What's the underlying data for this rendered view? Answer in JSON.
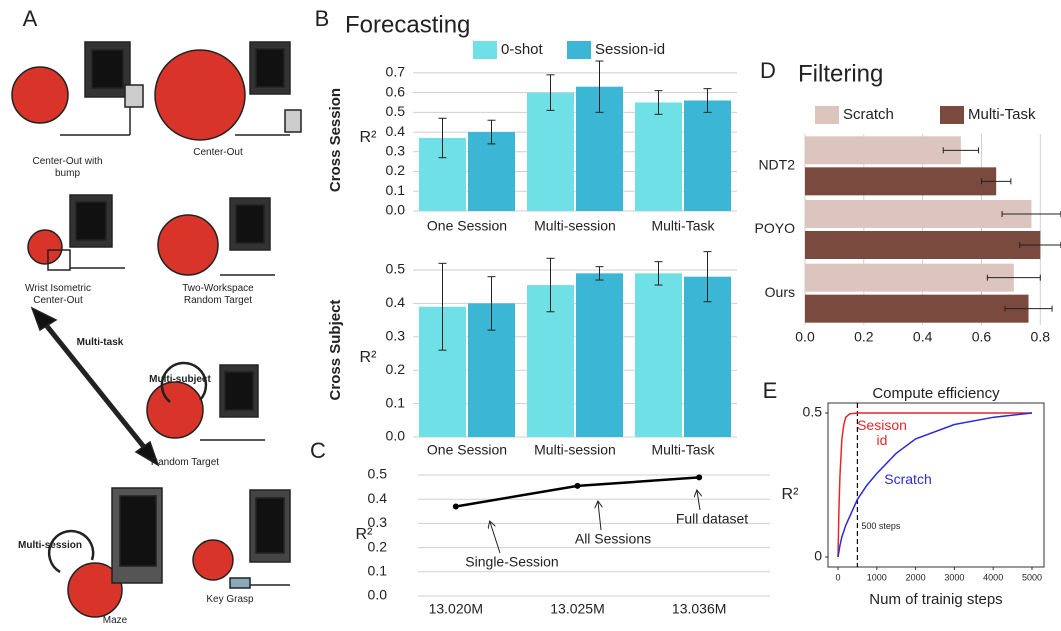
{
  "illustration": {
    "panel": "A",
    "captions": [
      "Center-Out with bump",
      "Center-Out",
      "Wrist Isometric Center-Out",
      "Two-Workspace Random Target",
      "Multi-task",
      "Multi-subject",
      "Random Target",
      "Multi-session",
      "Maze",
      "Key Grasp"
    ]
  },
  "chart_data": [
    {
      "type": "bar",
      "panel": "B",
      "title": "Forecasting",
      "ylabel": "Cross Session",
      "y_symbol": "R²",
      "categories": [
        "One Session",
        "Multi-session",
        "Multi-Task"
      ],
      "series": [
        {
          "name": "0-shot",
          "color": "#6fe1e6",
          "values": [
            0.37,
            0.6,
            0.55
          ],
          "errors": [
            0.1,
            0.09,
            0.06
          ]
        },
        {
          "name": "Session-id",
          "color": "#3bb6d5",
          "values": [
            0.4,
            0.63,
            0.56
          ],
          "errors": [
            0.06,
            0.13,
            0.06
          ]
        }
      ],
      "ylim": [
        0,
        0.75
      ],
      "yticks": [
        {
          "value": 0,
          "label": "0.0"
        },
        0.1,
        0.2,
        0.3,
        0.4,
        0.5,
        0.6,
        0.7
      ],
      "grid": true
    },
    {
      "type": "bar",
      "ylabel": "Cross Subject",
      "y_symbol": "R²",
      "categories": [
        "One Session",
        "Multi-session",
        "Multi-Task"
      ],
      "series": [
        {
          "color": "#6fe1e6",
          "values": [
            0.39,
            0.455,
            0.49
          ],
          "errors": [
            0.13,
            0.08,
            0.035
          ]
        },
        {
          "color": "#3bb6d5",
          "values": [
            0.4,
            0.49,
            0.48
          ],
          "errors": [
            0.08,
            0.02,
            0.075
          ]
        }
      ],
      "ylim": [
        0,
        0.5
      ],
      "yticks": [
        {
          "value": 0,
          "label": "0.0"
        },
        0.1,
        0.2,
        0.3,
        0.4,
        0.5
      ],
      "grid": true
    },
    {
      "type": "line",
      "panel": "C",
      "y_symbol": "R²",
      "categories": [
        "13.020M",
        "13.025M",
        "13.036M"
      ],
      "values": [
        0.37,
        0.455,
        0.49
      ],
      "color": "#000000",
      "annotations": [
        "Single-Session",
        "All Sessions",
        "Full dataset"
      ],
      "ylim": [
        0,
        0.5
      ],
      "yticks": [
        {
          "value": 0,
          "label": "0.0"
        },
        0.1,
        0.2,
        0.3,
        0.4,
        0.5
      ],
      "grid": true
    },
    {
      "type": "hbar",
      "panel": "D",
      "title": "Filtering",
      "categories": [
        "NDT2",
        "POYO",
        "Ours"
      ],
      "series": [
        {
          "name": "Scratch",
          "color": "#dcc5be",
          "values": [
            0.53,
            0.77,
            0.71
          ],
          "errors": [
            0.06,
            0.1,
            0.09
          ]
        },
        {
          "name": "Multi-Task",
          "color": "#7a4a3e",
          "values": [
            0.65,
            0.8,
            0.76
          ],
          "errors": [
            0.05,
            0.07,
            0.08
          ]
        }
      ],
      "xlim": [
        0,
        0.85
      ],
      "xticks": [
        {
          "value": 0,
          "label": "0.0"
        },
        0.2,
        0.4,
        0.6,
        0.8
      ],
      "grid": true
    },
    {
      "type": "curve",
      "panel": "E",
      "title": "Compute efficiency",
      "xlabel": "Num of trainig steps",
      "y_symbol": "R²",
      "x": [
        0,
        25,
        50,
        100,
        150,
        200,
        300,
        500,
        750,
        1000,
        1500,
        2000,
        3000,
        4000,
        5000
      ],
      "series": [
        {
          "name": "Sesison id",
          "color": "#e8272a",
          "values": [
            0,
            0.17,
            0.28,
            0.41,
            0.46,
            0.485,
            0.497,
            0.5,
            0.5,
            0.5,
            0.5,
            0.5,
            0.5,
            0.5,
            0.5
          ]
        },
        {
          "name": "Scratch",
          "color": "#2b2bd6",
          "values": [
            0,
            0.02,
            0.04,
            0.07,
            0.09,
            0.11,
            0.14,
            0.2,
            0.25,
            0.29,
            0.36,
            0.41,
            0.46,
            0.485,
            0.5
          ]
        }
      ],
      "vlines": [
        {
          "value": 500,
          "label": "500 steps"
        }
      ],
      "xlim": [
        0,
        5000
      ],
      "xticks": [
        0,
        1000,
        2000,
        3000,
        4000,
        5000
      ],
      "ylim": [
        0,
        0.5
      ],
      "yticks": [
        0,
        0.5
      ]
    }
  ]
}
